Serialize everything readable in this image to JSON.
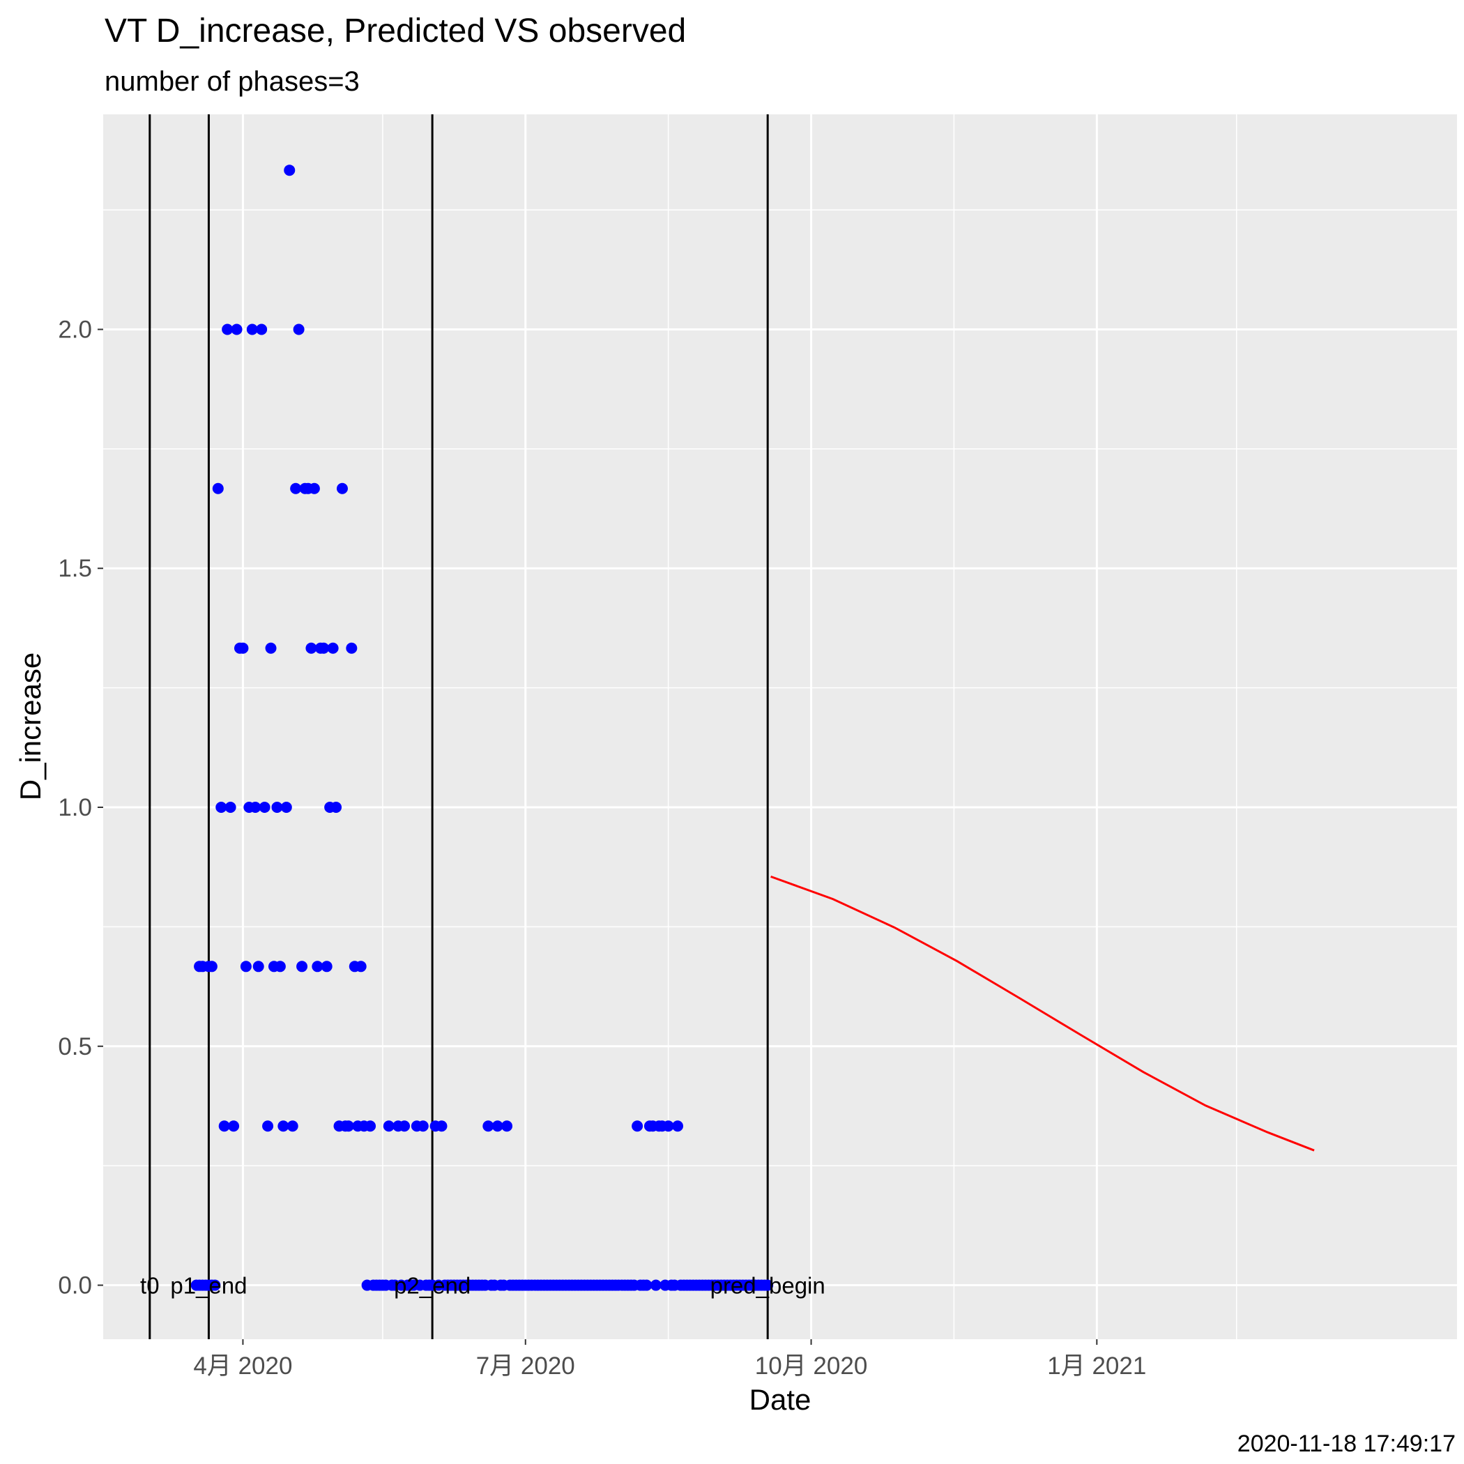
{
  "chart_data": {
    "type": "scatter",
    "title": "VT D_increase, Predicted VS observed",
    "subtitle": "number of phases=3",
    "xlabel": "Date",
    "ylabel": "D_increase",
    "caption": "2020-11-18 17:49:17",
    "x_scale": "date",
    "xlim": [
      "2020-02-16",
      "2021-04-27"
    ],
    "ylim": [
      -0.113,
      2.45
    ],
    "x_ticks": [
      {
        "date": "2020-04-01",
        "label": "4月 2020"
      },
      {
        "date": "2020-07-01",
        "label": "7月 2020"
      },
      {
        "date": "2020-10-01",
        "label": "10月 2020"
      },
      {
        "date": "2021-01-01",
        "label": "1月 2021"
      }
    ],
    "x_minor_ticks": [
      "2020-02-15",
      "2020-05-16",
      "2020-08-16",
      "2020-11-16",
      "2021-02-15"
    ],
    "y_ticks": [
      {
        "value": 0,
        "label": "0.0"
      },
      {
        "value": 0.5,
        "label": "0.5"
      },
      {
        "value": 1,
        "label": "1.0"
      },
      {
        "value": 1.5,
        "label": "1.5"
      },
      {
        "value": 2,
        "label": "2.0"
      }
    ],
    "grid": true,
    "background": "#ebebeb",
    "vlines": [
      {
        "date": "2020-03-02",
        "label": "t0"
      },
      {
        "date": "2020-03-21",
        "label": "p1_end"
      },
      {
        "date": "2020-06-01",
        "label": "p2_end"
      },
      {
        "date": "2020-09-17",
        "label": "pred_begin"
      }
    ],
    "observed": {
      "color": "#0000ff",
      "points": [
        {
          "x": "2020-03-17",
          "y": 0
        },
        {
          "x": "2020-03-18",
          "y": 0
        },
        {
          "x": "2020-03-19",
          "y": 0
        },
        {
          "x": "2020-03-20",
          "y": 0
        },
        {
          "x": "2020-03-21",
          "y": 0
        },
        {
          "x": "2020-03-22",
          "y": 0
        },
        {
          "x": "2020-03-23",
          "y": 0
        },
        {
          "x": "2020-03-18",
          "y": 0.667
        },
        {
          "x": "2020-03-19",
          "y": 0.667
        },
        {
          "x": "2020-03-21",
          "y": 0.667
        },
        {
          "x": "2020-03-22",
          "y": 0.667
        },
        {
          "x": "2020-03-24",
          "y": 1.667
        },
        {
          "x": "2020-03-25",
          "y": 1
        },
        {
          "x": "2020-03-26",
          "y": 0.333
        },
        {
          "x": "2020-03-27",
          "y": 2
        },
        {
          "x": "2020-03-28",
          "y": 1
        },
        {
          "x": "2020-03-29",
          "y": 0.333
        },
        {
          "x": "2020-03-30",
          "y": 2
        },
        {
          "x": "2020-03-31",
          "y": 1.333
        },
        {
          "x": "2020-04-01",
          "y": 1.333
        },
        {
          "x": "2020-04-02",
          "y": 0.667
        },
        {
          "x": "2020-04-03",
          "y": 1
        },
        {
          "x": "2020-04-04",
          "y": 2
        },
        {
          "x": "2020-04-05",
          "y": 1
        },
        {
          "x": "2020-04-06",
          "y": 0.667
        },
        {
          "x": "2020-04-07",
          "y": 2
        },
        {
          "x": "2020-04-08",
          "y": 1
        },
        {
          "x": "2020-04-09",
          "y": 0.333
        },
        {
          "x": "2020-04-10",
          "y": 1.333
        },
        {
          "x": "2020-04-11",
          "y": 0.667
        },
        {
          "x": "2020-04-12",
          "y": 1
        },
        {
          "x": "2020-04-13",
          "y": 0.667
        },
        {
          "x": "2020-04-14",
          "y": 0.333
        },
        {
          "x": "2020-04-15",
          "y": 1
        },
        {
          "x": "2020-04-16",
          "y": 2.333
        },
        {
          "x": "2020-04-17",
          "y": 0.333
        },
        {
          "x": "2020-04-18",
          "y": 1.667
        },
        {
          "x": "2020-04-19",
          "y": 2
        },
        {
          "x": "2020-04-20",
          "y": 0.667
        },
        {
          "x": "2020-04-21",
          "y": 1.667
        },
        {
          "x": "2020-04-22",
          "y": 1.667
        },
        {
          "x": "2020-04-23",
          "y": 1.333
        },
        {
          "x": "2020-04-24",
          "y": 1.667
        },
        {
          "x": "2020-04-25",
          "y": 0.667
        },
        {
          "x": "2020-04-26",
          "y": 1.333
        },
        {
          "x": "2020-04-27",
          "y": 1.333
        },
        {
          "x": "2020-04-28",
          "y": 0.667
        },
        {
          "x": "2020-04-29",
          "y": 1
        },
        {
          "x": "2020-04-30",
          "y": 1.333
        },
        {
          "x": "2020-05-01",
          "y": 1
        },
        {
          "x": "2020-05-02",
          "y": 0.333
        },
        {
          "x": "2020-05-03",
          "y": 1.667
        },
        {
          "x": "2020-05-04",
          "y": 0.333
        },
        {
          "x": "2020-05-05",
          "y": 0.333
        },
        {
          "x": "2020-05-06",
          "y": 1.333
        },
        {
          "x": "2020-05-07",
          "y": 0.667
        },
        {
          "x": "2020-05-08",
          "y": 0.333
        },
        {
          "x": "2020-05-09",
          "y": 0.667
        },
        {
          "x": "2020-05-10",
          "y": 0.333
        },
        {
          "x": "2020-05-11",
          "y": 0
        },
        {
          "x": "2020-05-12",
          "y": 0.333
        },
        {
          "x": "2020-05-13",
          "y": 0
        },
        {
          "x": "2020-05-14",
          "y": 0
        },
        {
          "x": "2020-05-15",
          "y": 0
        },
        {
          "x": "2020-05-16",
          "y": 0
        },
        {
          "x": "2020-05-17",
          "y": 0
        },
        {
          "x": "2020-05-18",
          "y": 0.333
        },
        {
          "x": "2020-05-19",
          "y": 0
        },
        {
          "x": "2020-05-20",
          "y": 0
        },
        {
          "x": "2020-05-21",
          "y": 0.333
        },
        {
          "x": "2020-05-22",
          "y": 0
        },
        {
          "x": "2020-05-23",
          "y": 0.333
        },
        {
          "x": "2020-05-24",
          "y": 0
        },
        {
          "x": "2020-05-25",
          "y": 0
        },
        {
          "x": "2020-05-26",
          "y": 0
        },
        {
          "x": "2020-05-27",
          "y": 0.333
        },
        {
          "x": "2020-05-28",
          "y": 0
        },
        {
          "x": "2020-05-29",
          "y": 0.333
        },
        {
          "x": "2020-05-30",
          "y": 0
        },
        {
          "x": "2020-05-31",
          "y": 0
        },
        {
          "x": "2020-06-01",
          "y": 0
        },
        {
          "x": "2020-06-02",
          "y": 0.333
        },
        {
          "x": "2020-06-03",
          "y": 0
        },
        {
          "x": "2020-06-04",
          "y": 0.333
        },
        {
          "x": "2020-06-05",
          "y": 0
        },
        {
          "x": "2020-06-06",
          "y": 0
        },
        {
          "x": "2020-06-07",
          "y": 0
        },
        {
          "x": "2020-06-08",
          "y": 0
        },
        {
          "x": "2020-06-09",
          "y": 0
        },
        {
          "x": "2020-06-10",
          "y": 0
        },
        {
          "x": "2020-06-11",
          "y": 0
        },
        {
          "x": "2020-06-12",
          "y": 0
        },
        {
          "x": "2020-06-13",
          "y": 0
        },
        {
          "x": "2020-06-14",
          "y": 0
        },
        {
          "x": "2020-06-15",
          "y": 0
        },
        {
          "x": "2020-06-16",
          "y": 0
        },
        {
          "x": "2020-06-17",
          "y": 0
        },
        {
          "x": "2020-06-18",
          "y": 0
        },
        {
          "x": "2020-06-19",
          "y": 0.333
        },
        {
          "x": "2020-06-20",
          "y": 0
        },
        {
          "x": "2020-06-21",
          "y": 0
        },
        {
          "x": "2020-06-22",
          "y": 0.333
        },
        {
          "x": "2020-06-23",
          "y": 0
        },
        {
          "x": "2020-06-24",
          "y": 0
        },
        {
          "x": "2020-06-25",
          "y": 0.333
        },
        {
          "x": "2020-06-26",
          "y": 0
        },
        {
          "x": "2020-06-27",
          "y": 0
        },
        {
          "x": "2020-06-28",
          "y": 0
        },
        {
          "x": "2020-06-29",
          "y": 0
        },
        {
          "x": "2020-06-30",
          "y": 0
        },
        {
          "x": "2020-07-01",
          "y": 0
        },
        {
          "x": "2020-07-02",
          "y": 0
        },
        {
          "x": "2020-07-03",
          "y": 0
        },
        {
          "x": "2020-07-04",
          "y": 0
        },
        {
          "x": "2020-07-05",
          "y": 0
        },
        {
          "x": "2020-07-06",
          "y": 0
        },
        {
          "x": "2020-07-07",
          "y": 0
        },
        {
          "x": "2020-07-08",
          "y": 0
        },
        {
          "x": "2020-07-09",
          "y": 0
        },
        {
          "x": "2020-07-10",
          "y": 0
        },
        {
          "x": "2020-07-11",
          "y": 0
        },
        {
          "x": "2020-07-12",
          "y": 0
        },
        {
          "x": "2020-07-13",
          "y": 0
        },
        {
          "x": "2020-07-14",
          "y": 0
        },
        {
          "x": "2020-07-15",
          "y": 0
        },
        {
          "x": "2020-07-16",
          "y": 0
        },
        {
          "x": "2020-07-17",
          "y": 0
        },
        {
          "x": "2020-07-18",
          "y": 0
        },
        {
          "x": "2020-07-19",
          "y": 0
        },
        {
          "x": "2020-07-20",
          "y": 0
        },
        {
          "x": "2020-07-21",
          "y": 0
        },
        {
          "x": "2020-07-22",
          "y": 0
        },
        {
          "x": "2020-07-23",
          "y": 0
        },
        {
          "x": "2020-07-24",
          "y": 0
        },
        {
          "x": "2020-07-25",
          "y": 0
        },
        {
          "x": "2020-07-26",
          "y": 0
        },
        {
          "x": "2020-07-27",
          "y": 0
        },
        {
          "x": "2020-07-28",
          "y": 0
        },
        {
          "x": "2020-07-29",
          "y": 0
        },
        {
          "x": "2020-07-30",
          "y": 0
        },
        {
          "x": "2020-07-31",
          "y": 0
        },
        {
          "x": "2020-08-01",
          "y": 0
        },
        {
          "x": "2020-08-02",
          "y": 0
        },
        {
          "x": "2020-08-03",
          "y": 0
        },
        {
          "x": "2020-08-04",
          "y": 0
        },
        {
          "x": "2020-08-05",
          "y": 0
        },
        {
          "x": "2020-08-06",
          "y": 0.333
        },
        {
          "x": "2020-08-07",
          "y": 0
        },
        {
          "x": "2020-08-08",
          "y": 0
        },
        {
          "x": "2020-08-09",
          "y": 0
        },
        {
          "x": "2020-08-10",
          "y": 0.333
        },
        {
          "x": "2020-08-11",
          "y": 0.333
        },
        {
          "x": "2020-08-12",
          "y": 0
        },
        {
          "x": "2020-08-13",
          "y": 0.333
        },
        {
          "x": "2020-08-14",
          "y": 0.333
        },
        {
          "x": "2020-08-15",
          "y": 0
        },
        {
          "x": "2020-08-16",
          "y": 0.333
        },
        {
          "x": "2020-08-17",
          "y": 0
        },
        {
          "x": "2020-08-18",
          "y": 0
        },
        {
          "x": "2020-08-19",
          "y": 0.333
        },
        {
          "x": "2020-08-20",
          "y": 0
        },
        {
          "x": "2020-08-21",
          "y": 0
        },
        {
          "x": "2020-08-22",
          "y": 0
        },
        {
          "x": "2020-08-23",
          "y": 0
        },
        {
          "x": "2020-08-24",
          "y": 0
        },
        {
          "x": "2020-08-25",
          "y": 0
        },
        {
          "x": "2020-08-26",
          "y": 0
        },
        {
          "x": "2020-08-27",
          "y": 0
        },
        {
          "x": "2020-08-28",
          "y": 0
        },
        {
          "x": "2020-08-29",
          "y": 0
        },
        {
          "x": "2020-08-30",
          "y": 0
        },
        {
          "x": "2020-08-31",
          "y": 0
        },
        {
          "x": "2020-09-01",
          "y": 0
        },
        {
          "x": "2020-09-02",
          "y": 0
        },
        {
          "x": "2020-09-03",
          "y": 0
        },
        {
          "x": "2020-09-04",
          "y": 0
        },
        {
          "x": "2020-09-05",
          "y": 0
        },
        {
          "x": "2020-09-06",
          "y": 0
        },
        {
          "x": "2020-09-07",
          "y": 0
        },
        {
          "x": "2020-09-08",
          "y": 0
        },
        {
          "x": "2020-09-09",
          "y": 0
        },
        {
          "x": "2020-09-10",
          "y": 0
        },
        {
          "x": "2020-09-11",
          "y": 0
        },
        {
          "x": "2020-09-12",
          "y": 0
        },
        {
          "x": "2020-09-13",
          "y": 0
        },
        {
          "x": "2020-09-14",
          "y": 0
        },
        {
          "x": "2020-09-15",
          "y": 0
        },
        {
          "x": "2020-09-16",
          "y": 0
        },
        {
          "x": "2020-09-17",
          "y": 0
        }
      ]
    },
    "predicted": {
      "color": "#ff0000",
      "points": [
        {
          "x": "2020-09-18",
          "y": 0.855
        },
        {
          "x": "2020-10-08",
          "y": 0.808
        },
        {
          "x": "2020-10-28",
          "y": 0.748
        },
        {
          "x": "2020-11-17",
          "y": 0.678
        },
        {
          "x": "2020-12-07",
          "y": 0.601
        },
        {
          "x": "2020-12-27",
          "y": 0.523
        },
        {
          "x": "2021-01-16",
          "y": 0.446
        },
        {
          "x": "2021-02-05",
          "y": 0.376
        },
        {
          "x": "2021-02-25",
          "y": 0.32
        },
        {
          "x": "2021-03-12",
          "y": 0.282
        }
      ]
    }
  }
}
